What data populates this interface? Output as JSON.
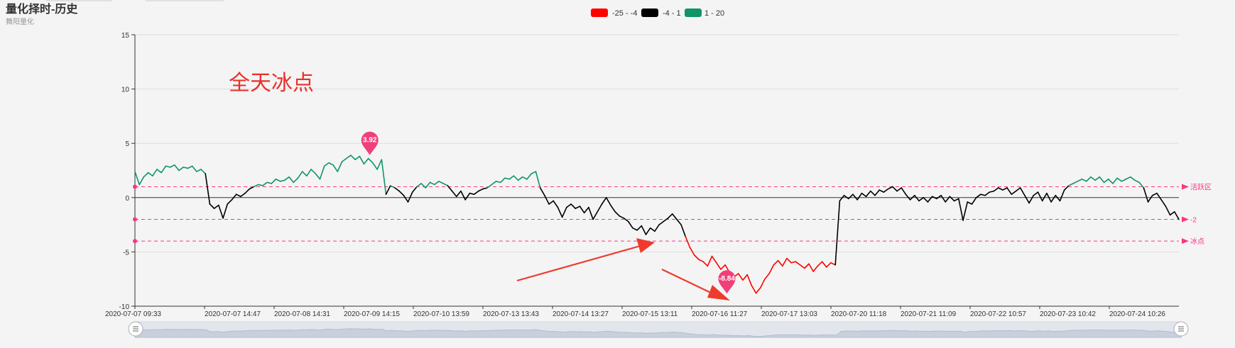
{
  "header": {
    "title": "量化择时-历史",
    "subtitle": "舞阳量化"
  },
  "legend": [
    {
      "label": "-25 - -4",
      "color": "#ff0000"
    },
    {
      "label": "-4 - 1",
      "color": "#000000"
    },
    {
      "label": "1 - 20",
      "color": "#10946a"
    }
  ],
  "annotation": {
    "text": "全天冰点",
    "color": "#e8302a"
  },
  "chart_data": {
    "type": "line",
    "title": "量化择时-历史",
    "subtitle": "舞阳量化",
    "ylim": [
      -10,
      15
    ],
    "yticks": [
      15,
      10,
      5,
      0,
      -5,
      -10
    ],
    "grid": true,
    "legend_position": "top-center",
    "xlabels": [
      "2020-07-07 09:33",
      "2020-07-07 14:47",
      "2020-07-08 14:31",
      "2020-07-09 14:15",
      "2020-07-10 13:59",
      "2020-07-13 13:43",
      "2020-07-14 13:27",
      "2020-07-15 13:11",
      "2020-07-16 11:27",
      "2020-07-17 13:03",
      "2020-07-20 11:18",
      "2020-07-21 11:09",
      "2020-07-22 10:57",
      "2020-07-23 10:42",
      "2020-07-24 10:26"
    ],
    "visual_map": [
      {
        "range": [
          -25,
          -4
        ],
        "color": "#ff0000"
      },
      {
        "range": [
          -4,
          1
        ],
        "color": "#000000"
      },
      {
        "range": [
          1,
          20
        ],
        "color": "#10946a"
      }
    ],
    "mark_lines": [
      {
        "y": 1,
        "label": "活跃区"
      },
      {
        "y": -2,
        "label": "-2"
      },
      {
        "y": -4,
        "label": "冰点"
      }
    ],
    "mark_points": [
      {
        "label": "3.92",
        "at": 0.225,
        "y": 3.92
      },
      {
        "label": "-8.84",
        "at": 0.567,
        "y": -8.84
      }
    ],
    "series": [
      {
        "values": [
          2.4,
          1.2,
          1.9,
          2.3,
          2.0,
          2.6,
          2.3,
          2.9,
          2.8,
          3.0,
          2.5,
          2.8,
          2.7,
          2.9,
          2.4,
          2.6,
          2.2,
          -0.6,
          -1.0,
          -0.7,
          -1.9,
          -0.6,
          -0.2,
          0.3,
          0.1,
          0.4,
          0.8,
          1.0,
          1.2,
          1.1,
          1.4,
          1.3,
          1.7,
          1.5,
          1.6,
          1.9,
          1.4,
          1.8,
          2.4,
          2.0,
          2.6,
          2.2,
          1.7,
          2.9,
          3.2,
          3.0,
          2.4,
          3.3,
          3.6,
          3.9,
          3.5,
          3.8,
          3.1,
          3.6,
          3.2,
          2.6,
          3.5,
          0.3,
          1.1,
          0.9,
          0.6,
          0.2,
          -0.4,
          0.5,
          1.0,
          1.3,
          0.9,
          1.4,
          1.2,
          1.5,
          1.3,
          1.1,
          0.6,
          0.1,
          0.6,
          -0.2,
          0.4,
          0.3,
          0.6,
          0.8,
          0.9,
          1.2,
          1.5,
          1.4,
          1.8,
          1.7,
          2.0,
          1.6,
          1.9,
          1.7,
          2.2,
          2.4,
          0.9,
          0.2,
          -0.6,
          -0.3,
          -0.9,
          -1.8,
          -0.9,
          -0.6,
          -1.0,
          -0.8,
          -1.4,
          -0.9,
          -2.0,
          -1.3,
          -0.6,
          0.0,
          -0.7,
          -1.3,
          -1.7,
          -1.9,
          -2.2,
          -2.8,
          -3.0,
          -2.6,
          -3.4,
          -2.8,
          -3.1,
          -2.5,
          -2.2,
          -1.9,
          -1.5,
          -2.0,
          -2.5,
          -3.6,
          -4.6,
          -5.3,
          -5.7,
          -5.9,
          -6.3,
          -5.4,
          -6.0,
          -6.6,
          -6.2,
          -6.9,
          -7.3,
          -7.0,
          -7.6,
          -7.1,
          -8.1,
          -8.8,
          -8.3,
          -7.5,
          -7.0,
          -6.2,
          -5.8,
          -6.3,
          -5.6,
          -6.0,
          -5.9,
          -6.2,
          -6.5,
          -6.1,
          -6.8,
          -6.3,
          -5.9,
          -6.4,
          -6.0,
          -6.2,
          -0.3,
          0.2,
          -0.1,
          0.3,
          -0.2,
          0.4,
          0.1,
          0.6,
          0.2,
          0.7,
          0.5,
          0.8,
          1.0,
          0.6,
          0.9,
          0.3,
          -0.2,
          0.2,
          -0.3,
          0.0,
          -0.4,
          0.1,
          -0.1,
          0.2,
          -0.4,
          0.1,
          -0.3,
          -0.1,
          -2.1,
          -0.4,
          -0.6,
          0.0,
          0.3,
          0.2,
          0.5,
          0.6,
          0.9,
          0.7,
          0.9,
          0.3,
          0.6,
          0.9,
          0.2,
          -0.5,
          0.2,
          0.5,
          -0.3,
          0.4,
          -0.4,
          0.2,
          -0.3,
          0.7,
          1.1,
          1.3,
          1.5,
          1.7,
          1.5,
          1.9,
          1.6,
          1.9,
          1.4,
          1.7,
          1.3,
          1.8,
          1.5,
          1.7,
          1.9,
          1.6,
          1.4,
          0.9,
          -0.4,
          0.2,
          0.4,
          -0.2,
          -0.8,
          -1.6,
          -1.3,
          -2.0
        ]
      }
    ]
  },
  "data_zoom": {
    "start_handle": "handle-icon",
    "end_handle": "handle-icon"
  }
}
